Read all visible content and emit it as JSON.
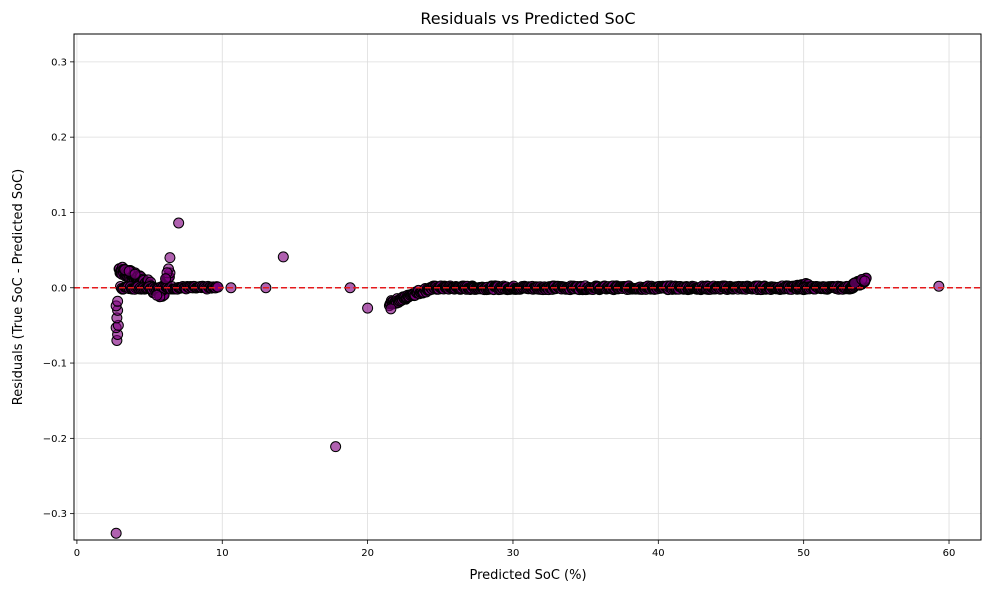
{
  "chart_data": {
    "type": "scatter",
    "title": "Residuals vs Predicted SoC",
    "xlabel": "Predicted SoC (%)",
    "ylabel": "Residuals (True SoC - Predicted SoC)",
    "xlim": [
      -0.2,
      62.2
    ],
    "ylim": [
      -0.335,
      0.337
    ],
    "xticks": [
      0,
      10,
      20,
      30,
      40,
      50,
      60
    ],
    "yticks": [
      -0.3,
      -0.2,
      -0.1,
      0.0,
      0.1,
      0.2,
      0.3
    ],
    "grid": true,
    "reference_line": {
      "y": 0.0,
      "color": "#e41a1c",
      "style": "dashed"
    },
    "marker_color": "#800080",
    "marker_edge_color": "#000000",
    "outliers": [
      {
        "x": 2.7,
        "y": -0.326
      },
      {
        "x": 2.75,
        "y": -0.07
      },
      {
        "x": 2.8,
        "y": -0.062
      },
      {
        "x": 2.7,
        "y": -0.053
      },
      {
        "x": 2.85,
        "y": -0.05
      },
      {
        "x": 2.75,
        "y": -0.04
      },
      {
        "x": 2.8,
        "y": -0.03
      },
      {
        "x": 2.7,
        "y": -0.024
      },
      {
        "x": 2.8,
        "y": -0.018
      },
      {
        "x": 7.0,
        "y": 0.086
      },
      {
        "x": 6.4,
        "y": 0.04
      },
      {
        "x": 6.3,
        "y": 0.025
      },
      {
        "x": 6.2,
        "y": 0.02
      },
      {
        "x": 6.1,
        "y": 0.012
      },
      {
        "x": 14.2,
        "y": 0.041
      },
      {
        "x": 17.8,
        "y": -0.211
      },
      {
        "x": 20.0,
        "y": -0.027
      },
      {
        "x": 21.6,
        "y": -0.028
      },
      {
        "x": 10.6,
        "y": 0.0
      },
      {
        "x": 13.0,
        "y": 0.0
      },
      {
        "x": 18.8,
        "y": 0.0
      },
      {
        "x": 59.3,
        "y": 0.002
      },
      {
        "x": 3.3,
        "y": 0.024
      },
      {
        "x": 3.6,
        "y": 0.022
      },
      {
        "x": 4.0,
        "y": 0.018
      },
      {
        "x": 5.7,
        "y": -0.012
      },
      {
        "x": 5.5,
        "y": -0.01
      },
      {
        "x": 53.5,
        "y": 0.006
      },
      {
        "x": 54.0,
        "y": 0.011
      },
      {
        "x": 54.2,
        "y": 0.009
      }
    ],
    "dense_bands": [
      {
        "x_start": 2.9,
        "x_end": 5.2,
        "y_start": 0.025,
        "y_end": 0.002,
        "count": 70,
        "spread": 0.006
      },
      {
        "x_start": 5.2,
        "x_end": 6.0,
        "y_start": -0.004,
        "y_end": -0.011,
        "count": 18,
        "spread": 0.003
      },
      {
        "x_start": 5.9,
        "x_end": 6.4,
        "y_start": -0.002,
        "y_end": 0.018,
        "count": 14,
        "spread": 0.003
      },
      {
        "x_start": 3.0,
        "x_end": 9.7,
        "y_start": 0.0,
        "y_end": 0.0,
        "count": 90,
        "spread": 0.002
      },
      {
        "x_start": 21.5,
        "x_end": 22.8,
        "y_start": -0.021,
        "y_end": -0.012,
        "count": 30,
        "spread": 0.003
      },
      {
        "x_start": 22.8,
        "x_end": 24.5,
        "y_start": -0.01,
        "y_end": 0.0,
        "count": 30,
        "spread": 0.003
      },
      {
        "x_start": 24.5,
        "x_end": 50.0,
        "y_start": 0.0,
        "y_end": 0.0,
        "count": 520,
        "spread": 0.0025
      },
      {
        "x_start": 49.5,
        "x_end": 50.3,
        "y_start": 0.003,
        "y_end": 0.004,
        "count": 12,
        "spread": 0.002
      },
      {
        "x_start": 50.0,
        "x_end": 53.3,
        "y_start": 0.0,
        "y_end": 0.0,
        "count": 60,
        "spread": 0.002
      },
      {
        "x_start": 53.3,
        "x_end": 54.3,
        "y_start": 0.002,
        "y_end": 0.01,
        "count": 40,
        "spread": 0.003
      }
    ]
  }
}
